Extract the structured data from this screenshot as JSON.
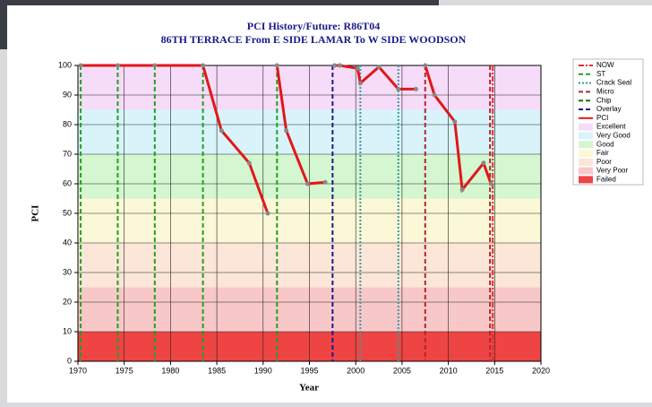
{
  "chart_data": {
    "type": "line",
    "title": "PCI History/Future: R86T04",
    "subtitle": "86TH TERRACE From E SIDE LAMAR To W SIDE WOODSON",
    "xlabel": "Year",
    "ylabel": "PCI",
    "xlim": [
      1970,
      2020
    ],
    "xticks": [
      1970,
      1975,
      1980,
      1985,
      1990,
      1995,
      2000,
      2005,
      2010,
      2015,
      2020
    ],
    "ylim": [
      0,
      100
    ],
    "yticks": [
      0,
      10,
      20,
      30,
      40,
      50,
      60,
      70,
      80,
      90,
      100
    ],
    "grid": true,
    "events": [
      {
        "name": "NOW",
        "color": "#e03030",
        "style": "dashdot",
        "x": [
          2014.8
        ]
      },
      {
        "name": "ST",
        "color": "#22a022",
        "style": "dash",
        "x": [
          1970.3,
          1974.3,
          1978.3,
          1983.5,
          1991.5
        ]
      },
      {
        "name": "Crack Seal",
        "color": "#3a9a9a",
        "style": "dot",
        "x": [
          2000.5,
          2004.6
        ]
      },
      {
        "name": "Micro",
        "color": "#b02828",
        "style": "dash",
        "x": [
          2007.5,
          2014.5
        ]
      },
      {
        "name": "Chip",
        "color": "#1a6a1a",
        "style": "dash",
        "x": []
      },
      {
        "name": "Overlay",
        "color": "#1a1a8a",
        "style": "dash",
        "x": [
          1997.5
        ]
      }
    ],
    "series": [
      {
        "name": "PCI",
        "color": "#e01818",
        "x": [
          1970.3,
          1974.3,
          1978.3,
          1983.5,
          1985.5,
          1988.5,
          1990.5,
          null,
          1991.5,
          1992.5,
          1994.8,
          1996.7,
          null,
          1997.7,
          1998.3,
          2000.2,
          2000.5,
          2002.5,
          2004.6,
          2006.5,
          null,
          2007.5,
          2008.5,
          2010.7,
          2011.5,
          2013.8,
          2014.6
        ],
        "values": [
          100,
          100,
          100,
          100,
          78,
          67,
          50,
          null,
          100,
          78,
          60,
          60.5,
          null,
          100,
          100,
          99,
          94,
          99.5,
          92,
          92,
          null,
          100,
          90,
          81,
          58,
          67,
          60
        ]
      }
    ],
    "bands": [
      {
        "name": "Excellent",
        "color": "#f6dcf8",
        "range": [
          85,
          100
        ]
      },
      {
        "name": "Very Good",
        "color": "#d8f4fa",
        "range": [
          70,
          85
        ]
      },
      {
        "name": "Good",
        "color": "#d4f6d0",
        "range": [
          55,
          70
        ]
      },
      {
        "name": "Fair",
        "color": "#fbf8d8",
        "range": [
          40,
          55
        ]
      },
      {
        "name": "Poor",
        "color": "#fbe6d8",
        "range": [
          25,
          40
        ]
      },
      {
        "name": "Very Poor",
        "color": "#f8c8c8",
        "range": [
          10,
          25
        ]
      },
      {
        "name": "Failed",
        "color": "#ee4444",
        "range": [
          0,
          10
        ]
      }
    ]
  }
}
